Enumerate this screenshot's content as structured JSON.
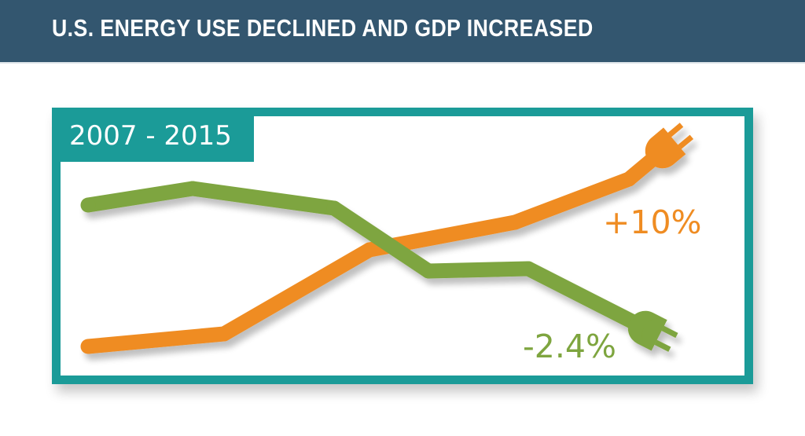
{
  "header": {
    "title": "U.S. ENERGY USE DECLINED AND GDP INCREASED"
  },
  "colors": {
    "header_bg": "#33566f",
    "frame": "#1b9b98",
    "gdp": "#ef8c22",
    "energy": "#7ea53f"
  },
  "chart_data": {
    "type": "line",
    "title": "U.S. ENERGY USE DECLINED AND GDP INCREASED",
    "period_label": "2007 - 2015",
    "x": [
      0,
      1,
      2,
      3,
      4,
      5
    ],
    "xlabel": "",
    "ylabel": "",
    "grid": false,
    "legend": "none",
    "series": [
      {
        "name": "GDP",
        "icon": "plug-icon",
        "color": "#ef8c22",
        "values": [
          0.0,
          0.9,
          6.8,
          8.7,
          10.0,
          12.8
        ],
        "end_label": "+10%"
      },
      {
        "name": "Energy use",
        "icon": "plug-icon",
        "color": "#7ea53f",
        "values": [
          10.0,
          11.2,
          9.8,
          5.4,
          5.6,
          0.8
        ],
        "end_label": "-2.4%"
      }
    ],
    "ylim": [
      -1,
      14
    ]
  }
}
